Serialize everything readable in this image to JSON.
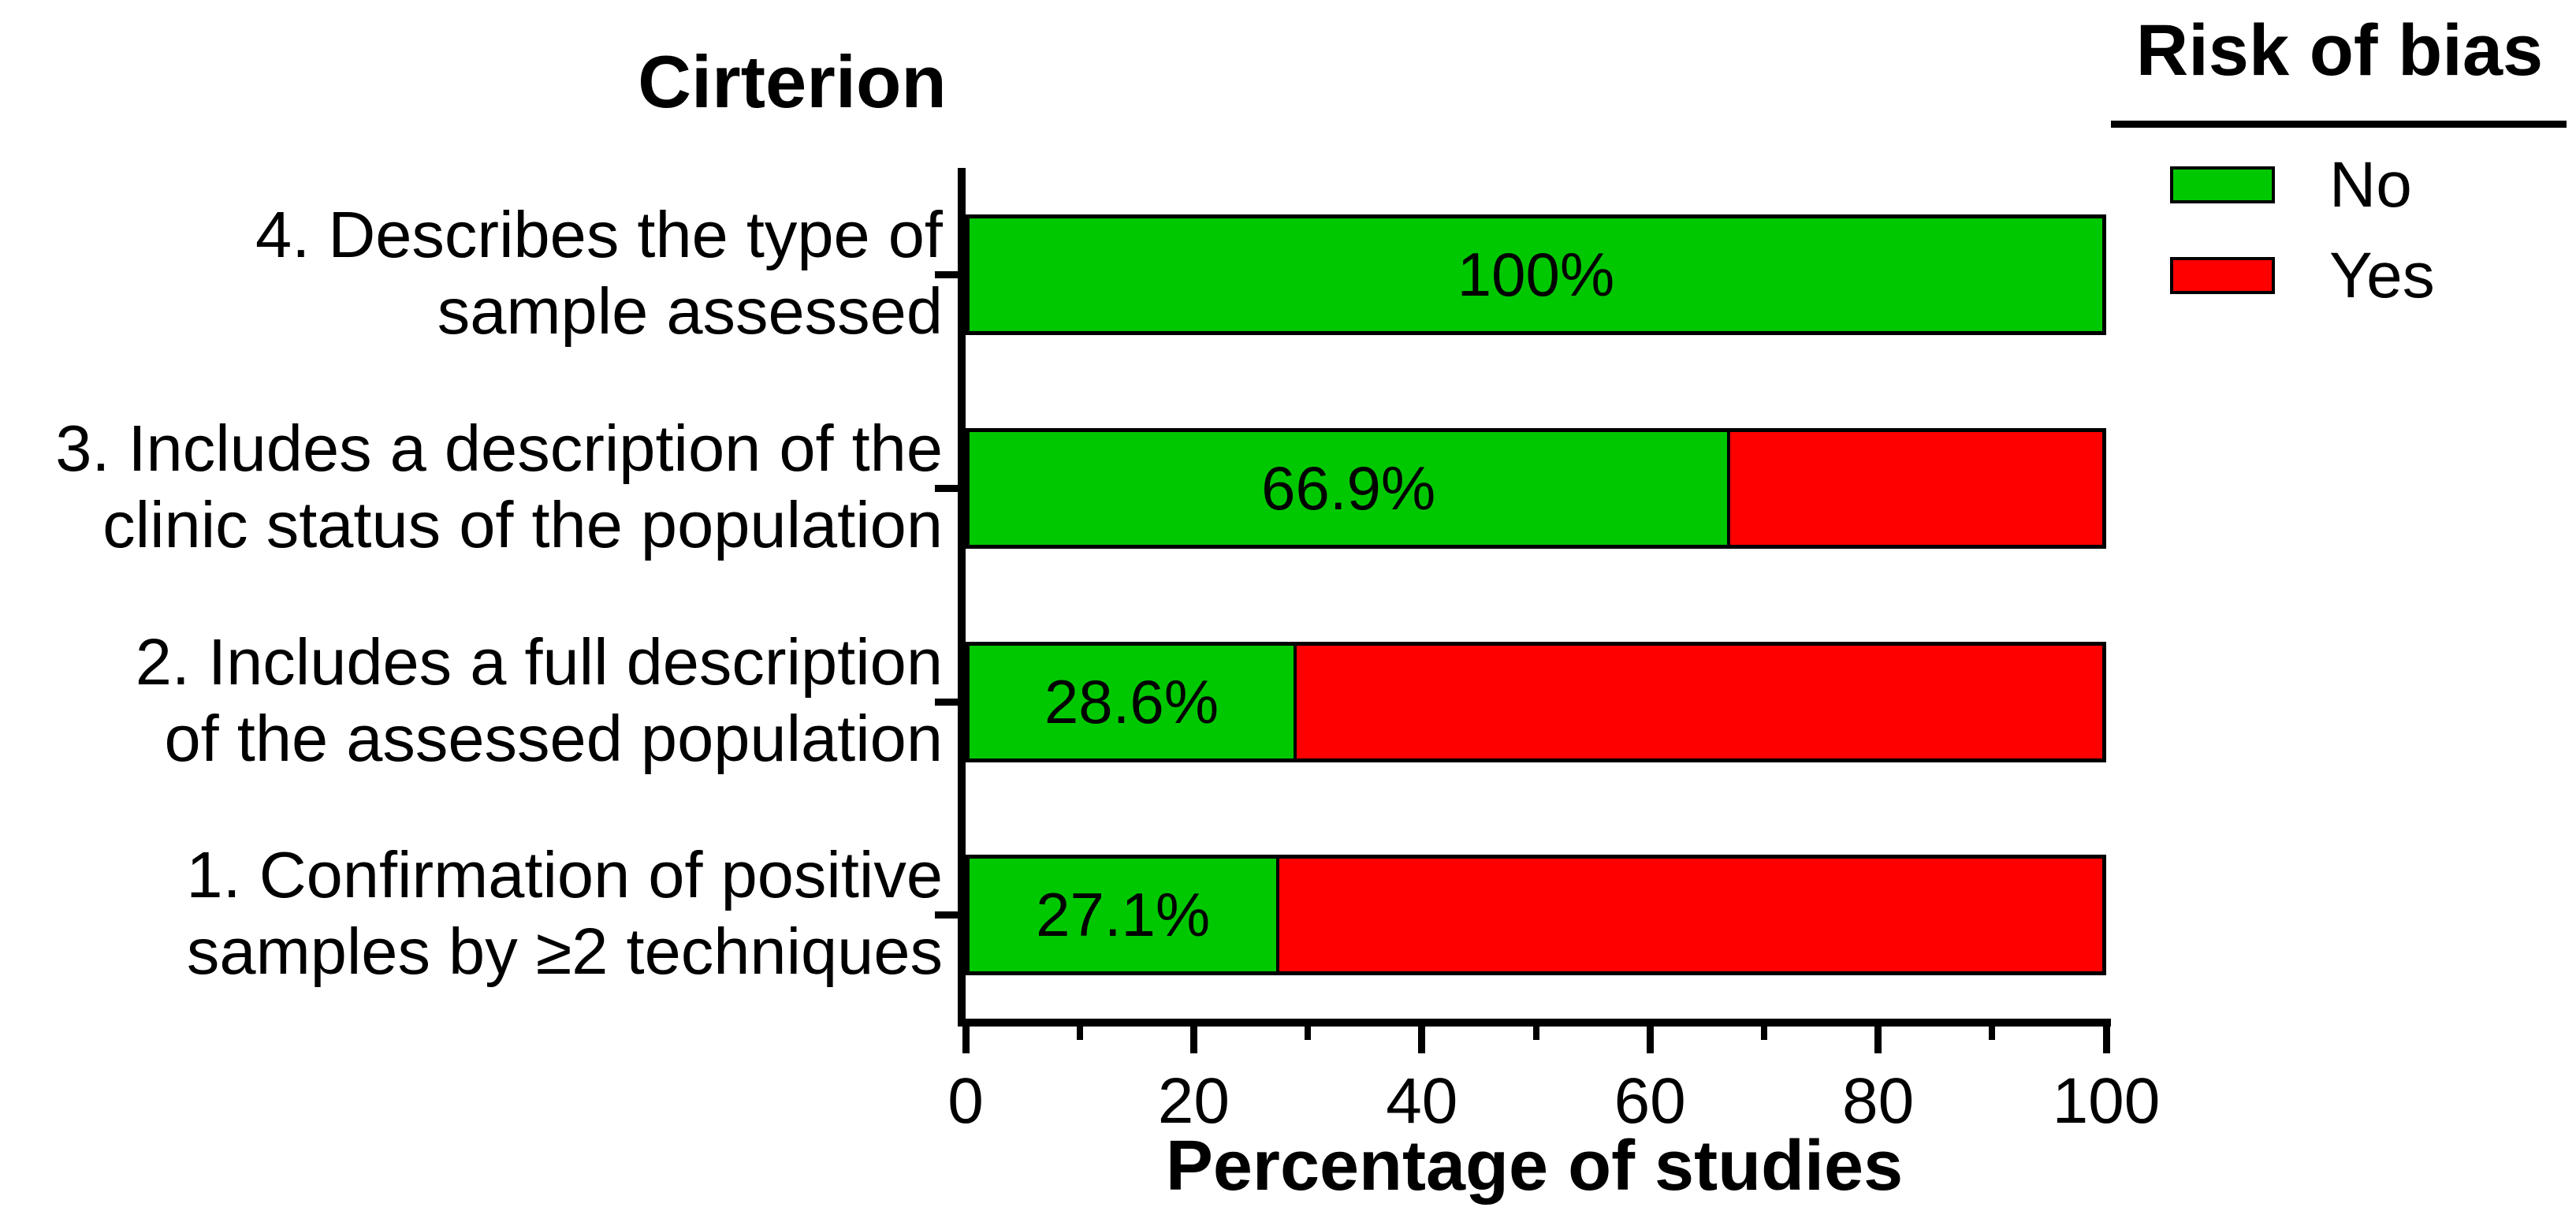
{
  "chart_data": {
    "type": "bar",
    "orientation": "horizontal",
    "stacked": true,
    "title": "Cirterion",
    "xlabel": "Percentage of studies",
    "ylabel": "",
    "xlim": [
      0,
      100
    ],
    "x_major_ticks": [
      0,
      20,
      40,
      60,
      80,
      100
    ],
    "x_minor_ticks": [
      10,
      30,
      50,
      70,
      90
    ],
    "grid": false,
    "legend": {
      "title": "Risk of bias",
      "position": "top-right",
      "entries": [
        {
          "label": "No",
          "color": "#00C800"
        },
        {
          "label": "Yes",
          "color": "#FF0000"
        }
      ]
    },
    "categories": [
      "4. Describes the type of sample assessed",
      "3. Includes a description of the clinic status of the population",
      "2. Includes a full description of the assessed population",
      "1. Confirmation of positive samples by ≥2 techniques"
    ],
    "rows": [
      {
        "label_lines": [
          "4. Describes the type of",
          "sample assessed"
        ],
        "no": 100,
        "yes": 0,
        "bar_label": "100%"
      },
      {
        "label_lines": [
          "3. Includes a description of the",
          "clinic status of the population"
        ],
        "no": 66.9,
        "yes": 33.1,
        "bar_label": "66.9%"
      },
      {
        "label_lines": [
          "2. Includes a full description",
          "of the assessed population"
        ],
        "no": 28.6,
        "yes": 71.4,
        "bar_label": "28.6%"
      },
      {
        "label_lines": [
          "1. Confirmation of positive",
          "samples by ≥2 techniques"
        ],
        "no": 27.1,
        "yes": 72.9,
        "bar_label": "27.1%"
      }
    ],
    "series": [
      {
        "name": "No",
        "color": "#00C800",
        "values": [
          100,
          66.9,
          28.6,
          27.1
        ]
      },
      {
        "name": "Yes",
        "color": "#FF0000",
        "values": [
          0,
          33.1,
          71.4,
          72.9
        ]
      }
    ],
    "colors": {
      "no": "#00C800",
      "yes": "#FF0000",
      "axis": "#000000",
      "text": "#000000",
      "background": "#FFFFFF"
    }
  }
}
